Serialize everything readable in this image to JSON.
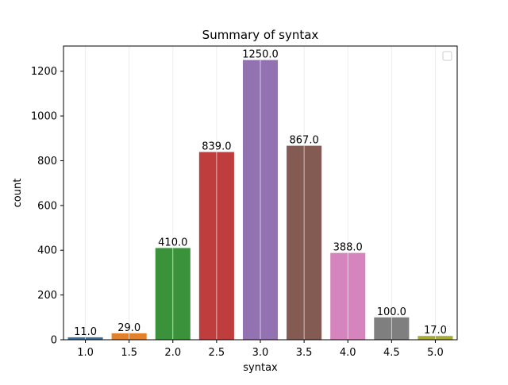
{
  "chart_data": {
    "type": "bar",
    "title": "Summary of syntax",
    "xlabel": "syntax",
    "ylabel": "count",
    "categories": [
      "1.0",
      "1.5",
      "2.0",
      "2.5",
      "3.0",
      "3.5",
      "4.0",
      "4.5",
      "5.0"
    ],
    "values": [
      11,
      29,
      410,
      839,
      1250,
      867,
      388,
      100,
      17
    ],
    "value_labels": [
      "11.0",
      "29.0",
      "410.0",
      "839.0",
      "1250.0",
      "867.0",
      "388.0",
      "100.0",
      "17.0"
    ],
    "ylim": [
      0,
      1312.5
    ],
    "yticks": [
      0,
      200,
      400,
      600,
      800,
      1000,
      1200
    ],
    "ytick_labels": [
      "0",
      "200",
      "400",
      "600",
      "800",
      "1000",
      "1200"
    ],
    "grid": "vertical",
    "legend": "top-right (empty box)",
    "colors": [
      "#3a6e9e",
      "#e1812c",
      "#3a923a",
      "#c03d3e",
      "#9372b2",
      "#845b53",
      "#d684bd",
      "#7f7f7f",
      "#a9aa35"
    ]
  }
}
